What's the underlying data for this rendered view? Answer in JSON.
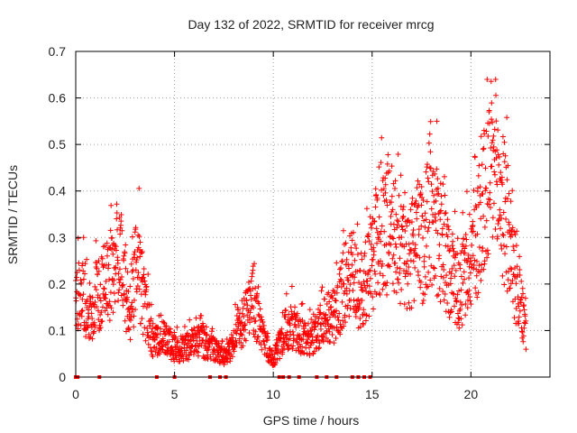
{
  "chart_data": {
    "type": "scatter",
    "title": "Day 132 of 2022, SRMTID for receiver mrcg",
    "xlabel": "GPS time / hours",
    "ylabel": "SRMTID / TECUs",
    "xlim": [
      0,
      24
    ],
    "ylim": [
      0,
      0.7
    ],
    "x_ticks": [
      0,
      5,
      10,
      15,
      20
    ],
    "x_tick_labels": [
      "0",
      "5",
      "10",
      "15",
      "20"
    ],
    "y_ticks": [
      0,
      0.1,
      0.2,
      0.3,
      0.4,
      0.5,
      0.6,
      0.7
    ],
    "y_tick_labels": [
      "0",
      "0.1",
      "0.2",
      "0.3",
      "0.4",
      "0.5",
      "0.6",
      "0.7"
    ],
    "grid": true,
    "marker": "+",
    "color": "#ff0000",
    "series": [
      {
        "name": "SRMTID",
        "trend": [
          [
            0.0,
            0.16
          ],
          [
            0.3,
            0.18
          ],
          [
            0.6,
            0.14
          ],
          [
            0.8,
            0.12
          ],
          [
            1.0,
            0.17
          ],
          [
            1.3,
            0.19
          ],
          [
            1.6,
            0.2
          ],
          [
            1.8,
            0.21
          ],
          [
            2.0,
            0.24
          ],
          [
            2.1,
            0.3
          ],
          [
            2.3,
            0.25
          ],
          [
            2.5,
            0.17
          ],
          [
            2.7,
            0.12
          ],
          [
            3.0,
            0.22
          ],
          [
            3.2,
            0.24
          ],
          [
            3.4,
            0.16
          ],
          [
            3.7,
            0.12
          ],
          [
            3.9,
            0.07
          ],
          [
            4.3,
            0.09
          ],
          [
            4.6,
            0.08
          ],
          [
            5.0,
            0.06
          ],
          [
            5.4,
            0.06
          ],
          [
            5.8,
            0.07
          ],
          [
            6.2,
            0.08
          ],
          [
            6.6,
            0.07
          ],
          [
            7.0,
            0.06
          ],
          [
            7.3,
            0.05
          ],
          [
            7.6,
            0.04
          ],
          [
            7.9,
            0.07
          ],
          [
            8.2,
            0.1
          ],
          [
            8.5,
            0.12
          ],
          [
            8.8,
            0.14
          ],
          [
            9.0,
            0.17
          ],
          [
            9.2,
            0.12
          ],
          [
            9.5,
            0.08
          ],
          [
            9.8,
            0.05
          ],
          [
            10.0,
            0.04
          ],
          [
            10.3,
            0.07
          ],
          [
            10.6,
            0.1
          ],
          [
            11.0,
            0.11
          ],
          [
            11.4,
            0.09
          ],
          [
            11.8,
            0.08
          ],
          [
            12.2,
            0.1
          ],
          [
            12.6,
            0.13
          ],
          [
            13.0,
            0.12
          ],
          [
            13.3,
            0.15
          ],
          [
            13.6,
            0.2
          ],
          [
            14.0,
            0.22
          ],
          [
            14.4,
            0.18
          ],
          [
            14.8,
            0.22
          ],
          [
            15.2,
            0.27
          ],
          [
            15.5,
            0.3
          ],
          [
            15.8,
            0.32
          ],
          [
            16.1,
            0.31
          ],
          [
            16.4,
            0.27
          ],
          [
            16.7,
            0.25
          ],
          [
            17.0,
            0.26
          ],
          [
            17.3,
            0.3
          ],
          [
            17.6,
            0.28
          ],
          [
            17.9,
            0.3
          ],
          [
            18.2,
            0.33
          ],
          [
            18.5,
            0.27
          ],
          [
            18.8,
            0.24
          ],
          [
            19.1,
            0.22
          ],
          [
            19.4,
            0.18
          ],
          [
            19.7,
            0.21
          ],
          [
            20.0,
            0.27
          ],
          [
            20.3,
            0.3
          ],
          [
            20.6,
            0.36
          ],
          [
            20.9,
            0.42
          ],
          [
            21.1,
            0.45
          ],
          [
            21.4,
            0.4
          ],
          [
            21.7,
            0.35
          ],
          [
            22.0,
            0.28
          ],
          [
            22.3,
            0.2
          ],
          [
            22.6,
            0.13
          ],
          [
            22.8,
            0.1
          ]
        ],
        "zero_points": [
          0.0,
          0.1,
          1.2,
          4.1,
          5.0,
          6.8,
          7.3,
          7.6,
          10.3,
          10.5,
          10.8,
          11.3,
          12.2,
          12.7,
          13.2,
          14.0,
          14.3,
          14.6,
          14.9
        ]
      }
    ]
  }
}
